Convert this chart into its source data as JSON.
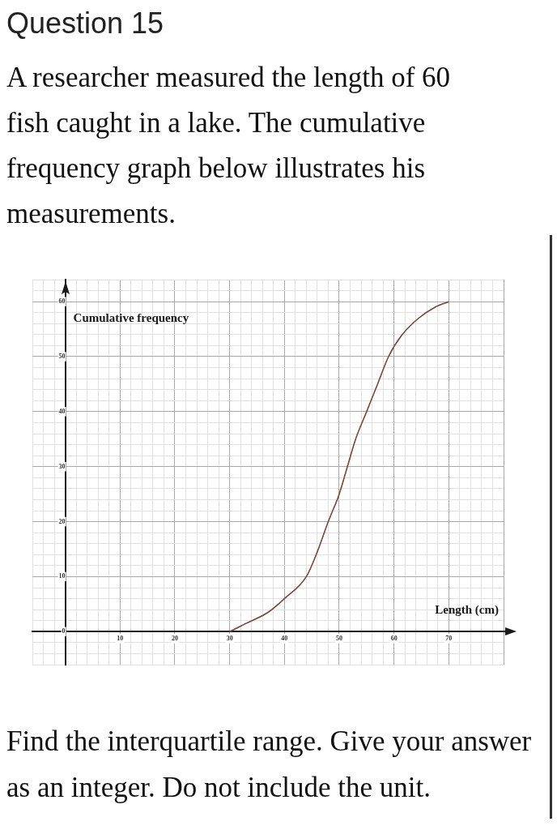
{
  "chart_data": {
    "type": "line",
    "title": "Question 15",
    "subtitle": "A researcher measured the length of 60 fish caught in a lake. The cumulative frequency graph below illustrates his measurements.",
    "xlabel": "Length (cm)",
    "ylabel": "Cumulative frequency",
    "annotations": [
      "Find the interquartile range. Give your answer as an integer. Do not include the unit."
    ],
    "x": [
      30,
      33,
      37,
      40,
      44,
      46,
      48,
      50,
      51.5,
      53,
      55,
      57,
      59,
      61.5,
      64.5,
      67.5,
      70
    ],
    "series": [
      {
        "color": "#7a4636",
        "values": [
          0,
          1.5,
          3.5,
          6,
          10,
          14.5,
          20,
          25,
          30,
          35,
          40,
          45,
          50,
          54,
          57,
          59,
          60
        ]
      }
    ],
    "xlim": [
      -6,
      80
    ],
    "ylim": [
      -6,
      64
    ],
    "xticks": [
      {
        "value": -6,
        "label": null
      },
      {
        "value": -4,
        "label": null
      },
      {
        "value": -2,
        "label": null
      },
      {
        "value": 0,
        "label": null
      },
      {
        "value": 2,
        "label": null
      },
      {
        "value": 4,
        "label": null
      },
      {
        "value": 6,
        "label": null
      },
      {
        "value": 8,
        "label": null
      },
      10,
      {
        "value": 12,
        "label": null
      },
      {
        "value": 14,
        "label": null
      },
      {
        "value": 16,
        "label": null
      },
      {
        "value": 18,
        "label": null
      },
      20,
      {
        "value": 22,
        "label": null
      },
      {
        "value": 24,
        "label": null
      },
      {
        "value": 26,
        "label": null
      },
      {
        "value": 28,
        "label": null
      },
      30,
      {
        "value": 32,
        "label": null
      },
      {
        "value": 34,
        "label": null
      },
      {
        "value": 36,
        "label": null
      },
      {
        "value": 38,
        "label": null
      },
      40,
      {
        "value": 42,
        "label": null
      },
      {
        "value": 44,
        "label": null
      },
      {
        "value": 46,
        "label": null
      },
      {
        "value": 48,
        "label": null
      },
      50,
      {
        "value": 52,
        "label": null
      },
      {
        "value": 54,
        "label": null
      },
      {
        "value": 56,
        "label": null
      },
      {
        "value": 58,
        "label": null
      },
      60,
      {
        "value": 62,
        "label": null
      },
      {
        "value": 64,
        "label": null
      },
      {
        "value": 66,
        "label": null
      },
      {
        "value": 68,
        "label": null
      },
      70,
      {
        "value": 72,
        "label": null
      },
      {
        "value": 74,
        "label": null
      },
      {
        "value": 76,
        "label": null
      },
      {
        "value": 78,
        "label": null
      },
      {
        "value": 80,
        "label": null
      }
    ],
    "yticks": [
      {
        "value": -6,
        "label": null
      },
      {
        "value": -4,
        "label": null
      },
      {
        "value": -2,
        "label": null
      },
      0,
      {
        "value": 2,
        "label": null
      },
      {
        "value": 4,
        "label": null
      },
      {
        "value": 6,
        "label": null
      },
      {
        "value": 8,
        "label": null
      },
      10,
      {
        "value": 12,
        "label": null
      },
      {
        "value": 14,
        "label": null
      },
      {
        "value": 16,
        "label": null
      },
      {
        "value": 18,
        "label": null
      },
      20,
      {
        "value": 22,
        "label": null
      },
      {
        "value": 24,
        "label": null
      },
      {
        "value": 26,
        "label": null
      },
      {
        "value": 28,
        "label": null
      },
      30,
      {
        "value": 32,
        "label": null
      },
      {
        "value": 34,
        "label": null
      },
      {
        "value": 36,
        "label": null
      },
      {
        "value": 38,
        "label": null
      },
      40,
      {
        "value": 42,
        "label": null
      },
      {
        "value": 44,
        "label": null
      },
      {
        "value": 46,
        "label": null
      },
      {
        "value": 48,
        "label": null
      },
      50,
      {
        "value": 52,
        "label": null
      },
      {
        "value": 54,
        "label": null
      },
      {
        "value": 56,
        "label": null
      },
      {
        "value": 58,
        "label": null
      },
      60,
      {
        "value": 62,
        "label": null
      },
      {
        "value": 64,
        "label": null
      }
    ],
    "grid": true
  }
}
